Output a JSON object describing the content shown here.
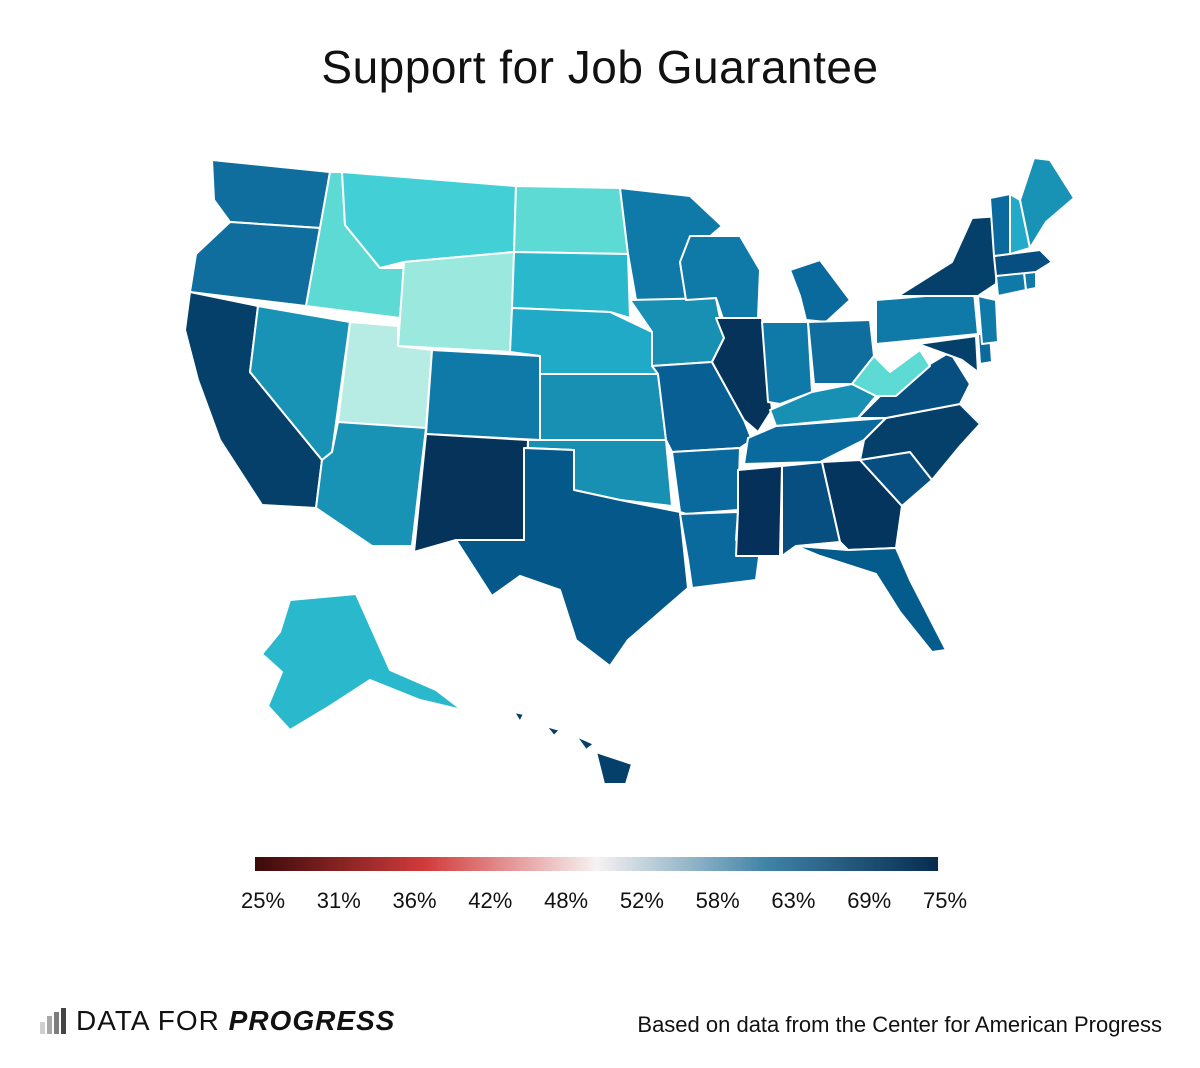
{
  "title": "Support for Job Guarantee",
  "legend": {
    "ticks": [
      "25%",
      "31%",
      "36%",
      "42%",
      "48%",
      "52%",
      "58%",
      "63%",
      "69%",
      "75%"
    ],
    "range": [
      25,
      75
    ],
    "colors": [
      "#3b0a0a",
      "#d23b3b",
      "#f7f2f2",
      "#3f83a6",
      "#062c4f"
    ]
  },
  "footer": {
    "logo_part1": "DATA  FOR ",
    "logo_part2": "PROGRESS",
    "source": "Based on data from the Center for American Progress"
  },
  "chart_data": {
    "type": "choropleth",
    "title": "Support for Job Guarantee",
    "scale": [
      25,
      75
    ],
    "states": [
      {
        "state": "WA",
        "color": "#0f6e9e"
      },
      {
        "state": "OR",
        "color": "#0f6e9e"
      },
      {
        "state": "CA",
        "color": "#05406a"
      },
      {
        "state": "NV",
        "color": "#1893b6"
      },
      {
        "state": "ID",
        "color": "#5ddad4"
      },
      {
        "state": "MT",
        "color": "#42cfd5"
      },
      {
        "state": "WY",
        "color": "#9ae8de"
      },
      {
        "state": "UT",
        "color": "#b6ece3"
      },
      {
        "state": "AZ",
        "color": "#1893b6"
      },
      {
        "state": "CO",
        "color": "#0f7aa8"
      },
      {
        "state": "NM",
        "color": "#05335a"
      },
      {
        "state": "ND",
        "color": "#5ddad4"
      },
      {
        "state": "SD",
        "color": "#2ab9cc"
      },
      {
        "state": "NE",
        "color": "#20aac7"
      },
      {
        "state": "KS",
        "color": "#1890b4"
      },
      {
        "state": "OK",
        "color": "#1890b4"
      },
      {
        "state": "TX",
        "color": "#04588a"
      },
      {
        "state": "MN",
        "color": "#0f7aa8"
      },
      {
        "state": "IA",
        "color": "#1890b4"
      },
      {
        "state": "MO",
        "color": "#085f94"
      },
      {
        "state": "AR",
        "color": "#0a6a9e"
      },
      {
        "state": "LA",
        "color": "#0a6a9e"
      },
      {
        "state": "WI",
        "color": "#0f7aa8"
      },
      {
        "state": "IL",
        "color": "#05335a"
      },
      {
        "state": "MI",
        "color": "#0a6a9e"
      },
      {
        "state": "IN",
        "color": "#0f7aa8"
      },
      {
        "state": "OH",
        "color": "#0f6e9e"
      },
      {
        "state": "KY",
        "color": "#1890b4"
      },
      {
        "state": "TN",
        "color": "#0a6a9e"
      },
      {
        "state": "MS",
        "color": "#04305a"
      },
      {
        "state": "AL",
        "color": "#064f80"
      },
      {
        "state": "GA",
        "color": "#04355e"
      },
      {
        "state": "FL",
        "color": "#045c8c"
      },
      {
        "state": "SC",
        "color": "#064f80"
      },
      {
        "state": "NC",
        "color": "#04406a"
      },
      {
        "state": "VA",
        "color": "#064f80"
      },
      {
        "state": "WV",
        "color": "#5ddad4"
      },
      {
        "state": "PA",
        "color": "#0f7aa8"
      },
      {
        "state": "NY",
        "color": "#04406a"
      },
      {
        "state": "MD",
        "color": "#04406a"
      },
      {
        "state": "DE",
        "color": "#0a6a9e"
      },
      {
        "state": "NJ",
        "color": "#0f7aa8"
      },
      {
        "state": "CT",
        "color": "#0f7aa8"
      },
      {
        "state": "RI",
        "color": "#0f7aa8"
      },
      {
        "state": "MA",
        "color": "#064f80"
      },
      {
        "state": "VT",
        "color": "#0a6a9e"
      },
      {
        "state": "NH",
        "color": "#22aac8"
      },
      {
        "state": "ME",
        "color": "#1893b6"
      },
      {
        "state": "AK",
        "color": "#2ab9cc"
      },
      {
        "state": "HI",
        "color": "#04406a"
      }
    ]
  }
}
